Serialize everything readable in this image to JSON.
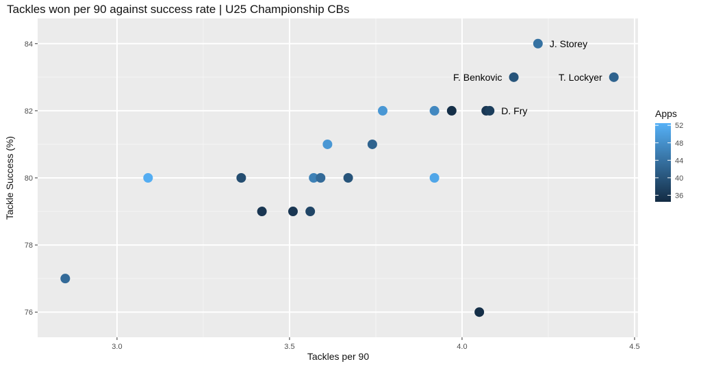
{
  "chart_data": {
    "type": "scatter",
    "title": "Tackles won per 90 against success rate | U25 Championship CBs",
    "xlabel": "Tackles per 90",
    "ylabel": "Tackle Success (%)",
    "xlim": [
      2.77,
      4.51
    ],
    "ylim": [
      75.25,
      84.75
    ],
    "x_ticks": [
      3.0,
      3.5,
      4.0,
      4.5
    ],
    "x_tick_labels": [
      "3.0",
      "3.5",
      "4.0",
      "4.5"
    ],
    "y_ticks": [
      76,
      78,
      80,
      82,
      84
    ],
    "y_tick_labels": [
      "76",
      "78",
      "80",
      "82",
      "84"
    ],
    "grid": true,
    "legend": {
      "title": "Apps",
      "type": "colorbar",
      "position": "right",
      "min": 34.5,
      "max": 52.5,
      "ticks": [
        52,
        48,
        44,
        40,
        36
      ],
      "tick_labels": [
        "52",
        "48",
        "44",
        "40",
        "36"
      ],
      "low_color": "#132B43",
      "high_color": "#56B1F7"
    },
    "points": [
      {
        "x": 2.85,
        "y": 77,
        "apps": 43,
        "label": ""
      },
      {
        "x": 3.09,
        "y": 80,
        "apps": 52,
        "label": ""
      },
      {
        "x": 3.36,
        "y": 80,
        "apps": 39,
        "label": ""
      },
      {
        "x": 3.42,
        "y": 79,
        "apps": 36,
        "label": ""
      },
      {
        "x": 3.51,
        "y": 79,
        "apps": 36,
        "label": ""
      },
      {
        "x": 3.56,
        "y": 79,
        "apps": 38,
        "label": ""
      },
      {
        "x": 3.57,
        "y": 80,
        "apps": 46,
        "label": ""
      },
      {
        "x": 3.59,
        "y": 80,
        "apps": 43,
        "label": ""
      },
      {
        "x": 3.61,
        "y": 81,
        "apps": 49,
        "label": ""
      },
      {
        "x": 3.67,
        "y": 80,
        "apps": 40,
        "label": ""
      },
      {
        "x": 3.74,
        "y": 81,
        "apps": 42,
        "label": ""
      },
      {
        "x": 3.77,
        "y": 82,
        "apps": 49,
        "label": ""
      },
      {
        "x": 3.92,
        "y": 82,
        "apps": 47,
        "label": ""
      },
      {
        "x": 3.92,
        "y": 80,
        "apps": 51,
        "label": ""
      },
      {
        "x": 3.97,
        "y": 82,
        "apps": 35,
        "label": ""
      },
      {
        "x": 4.05,
        "y": 76,
        "apps": 35,
        "label": ""
      },
      {
        "x": 4.07,
        "y": 82,
        "apps": 36,
        "label": ""
      },
      {
        "x": 4.08,
        "y": 82,
        "apps": 37,
        "label": "D. Fry",
        "label_side": "right"
      },
      {
        "x": 4.15,
        "y": 83,
        "apps": 40,
        "label": "F. Benkovic",
        "label_side": "left"
      },
      {
        "x": 4.22,
        "y": 84,
        "apps": 44,
        "label": "J. Storey",
        "label_side": "right"
      },
      {
        "x": 4.44,
        "y": 83,
        "apps": 42,
        "label": "T. Lockyer",
        "label_side": "left"
      }
    ]
  }
}
